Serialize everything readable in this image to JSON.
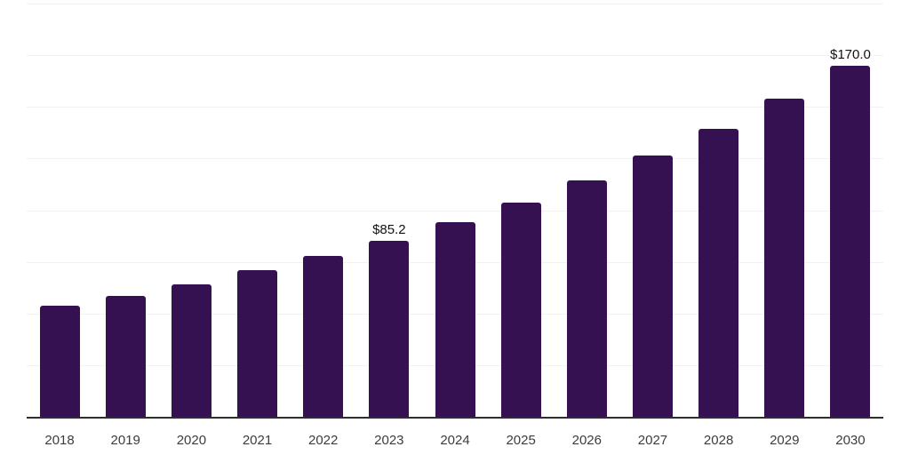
{
  "chart_data": {
    "type": "bar",
    "title": "",
    "xlabel": "",
    "ylabel": "",
    "categories": [
      "2018",
      "2019",
      "2020",
      "2021",
      "2022",
      "2023",
      "2024",
      "2025",
      "2026",
      "2027",
      "2028",
      "2029",
      "2030"
    ],
    "values": [
      53.6,
      58.6,
      64.3,
      70.9,
      77.7,
      85.2,
      94.0,
      103.8,
      114.5,
      126.4,
      139.5,
      154.0,
      170.0
    ],
    "value_labels": [
      "",
      "",
      "",
      "",
      "",
      "$85.2",
      "",
      "",
      "",
      "",
      "",
      "",
      "$170.0"
    ],
    "ylim": [
      0,
      200
    ],
    "grid": "horizontal",
    "gridline_step": 25,
    "legend": "none",
    "y_axis_labels_visible": false
  },
  "colors": {
    "bar": "#351152",
    "gridline": "#f2f2f3",
    "axis_line": "#2e2e2e",
    "value_label": "#111111",
    "tick_label": "#3c3c3c",
    "background": "#ffffff"
  }
}
